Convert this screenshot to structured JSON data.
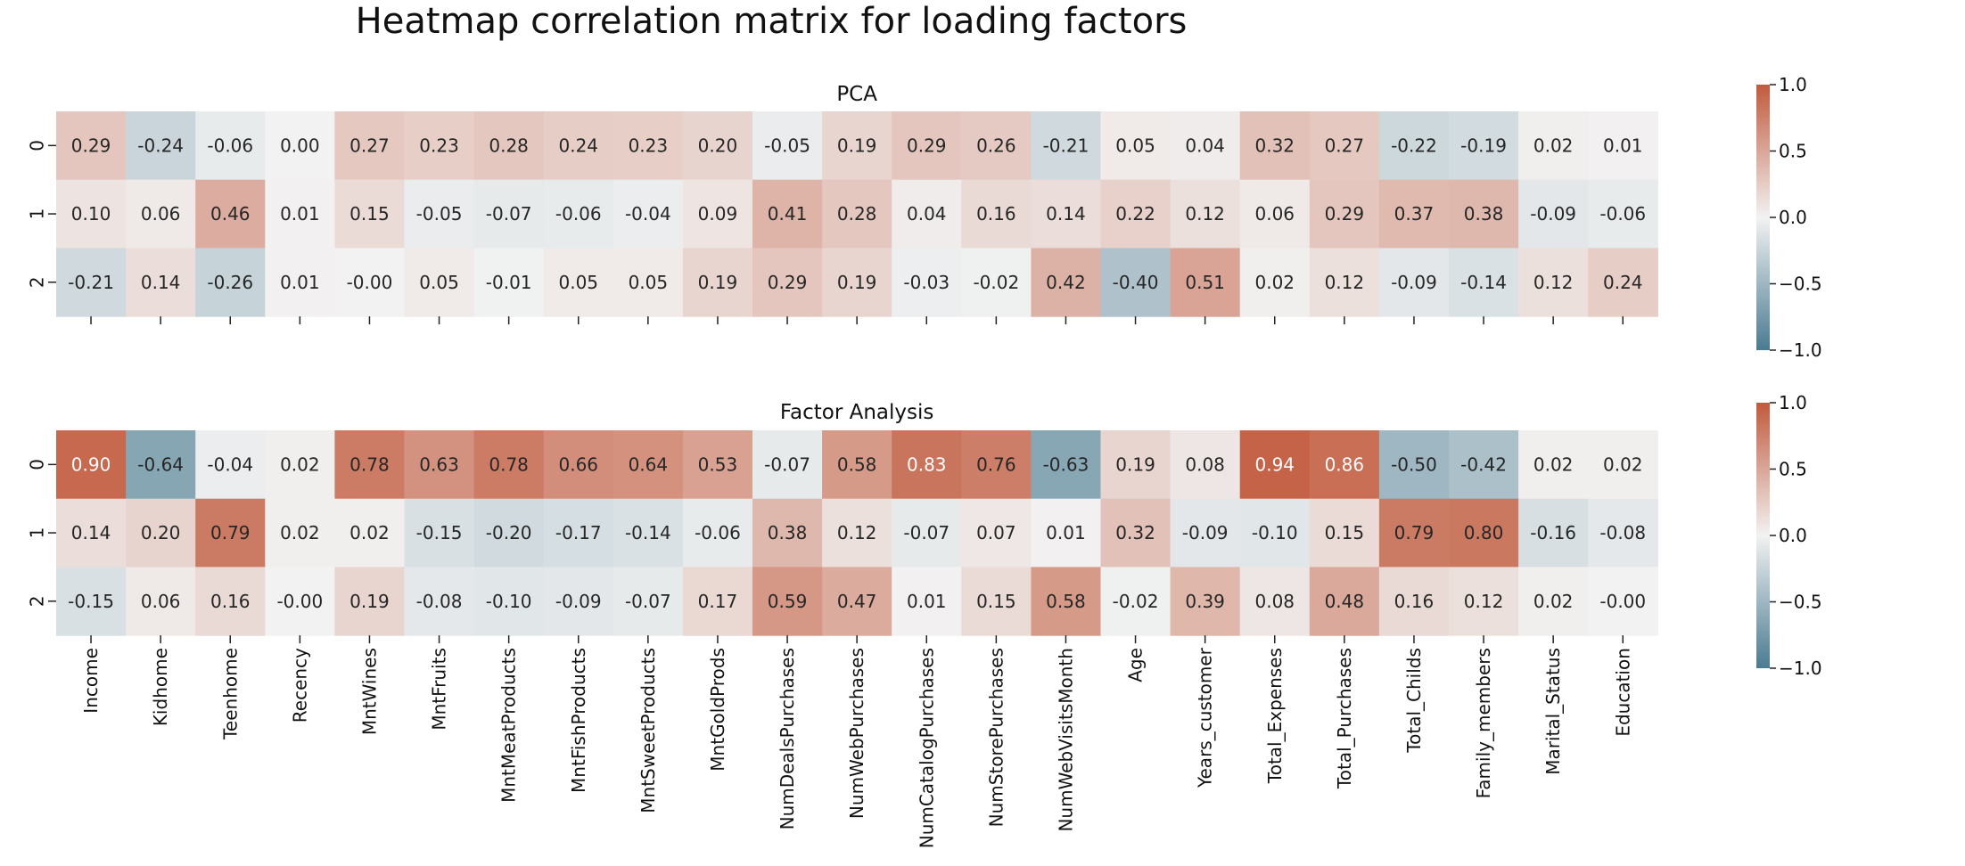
{
  "chart_data": {
    "type": "heatmap",
    "title": "Heatmap correlation matrix for loading factors",
    "colormap": {
      "low": "#4a7b91",
      "mid": "#f2f2f2",
      "high": "#c15a3d",
      "vmin": -1.0,
      "vmax": 1.0
    },
    "colorbar_ticks": [
      "1.0",
      "0.5",
      "0.0",
      "−0.5",
      "−1.0"
    ],
    "columns": [
      "Income",
      "Kidhome",
      "Teenhome",
      "Recency",
      "MntWines",
      "MntFruits",
      "MntMeatProducts",
      "MntFishProducts",
      "MntSweetProducts",
      "MntGoldProds",
      "NumDealsPurchases",
      "NumWebPurchases",
      "NumCatalogPurchases",
      "NumStorePurchases",
      "NumWebVisitsMonth",
      "Age",
      "Years_customer",
      "Total_Expenses",
      "Total_Purchases",
      "Total_Childs",
      "Family_members",
      "Marital_Status",
      "Education"
    ],
    "rows": [
      "0",
      "1",
      "2"
    ],
    "panels": [
      {
        "name": "PCA",
        "values": [
          [
            0.29,
            -0.24,
            -0.06,
            0.0,
            0.27,
            0.23,
            0.28,
            0.24,
            0.23,
            0.2,
            -0.05,
            0.19,
            0.29,
            0.26,
            -0.21,
            0.05,
            0.04,
            0.32,
            0.27,
            -0.22,
            -0.19,
            0.02,
            0.01
          ],
          [
            0.1,
            0.06,
            0.46,
            0.01,
            0.15,
            -0.05,
            -0.07,
            -0.06,
            -0.04,
            0.09,
            0.41,
            0.28,
            0.04,
            0.16,
            0.14,
            0.22,
            0.12,
            0.06,
            0.29,
            0.37,
            0.38,
            -0.09,
            -0.06
          ],
          [
            -0.21,
            0.14,
            -0.26,
            0.01,
            -0.0,
            0.05,
            -0.01,
            0.05,
            0.05,
            0.19,
            0.29,
            0.19,
            -0.03,
            -0.02,
            0.42,
            -0.4,
            0.51,
            0.02,
            0.12,
            -0.09,
            -0.14,
            0.12,
            0.24
          ]
        ]
      },
      {
        "name": "Factor Analysis",
        "values": [
          [
            0.9,
            -0.64,
            -0.04,
            0.02,
            0.78,
            0.63,
            0.78,
            0.66,
            0.64,
            0.53,
            -0.07,
            0.58,
            0.83,
            0.76,
            -0.63,
            0.19,
            0.08,
            0.94,
            0.86,
            -0.5,
            -0.42,
            0.02,
            0.02
          ],
          [
            0.14,
            0.2,
            0.79,
            0.02,
            0.02,
            -0.15,
            -0.2,
            -0.17,
            -0.14,
            -0.06,
            0.38,
            0.12,
            -0.07,
            0.07,
            0.01,
            0.32,
            -0.09,
            -0.1,
            0.15,
            0.79,
            0.8,
            -0.16,
            -0.08
          ],
          [
            -0.15,
            0.06,
            0.16,
            -0.0,
            0.19,
            -0.08,
            -0.1,
            -0.09,
            -0.07,
            0.17,
            0.59,
            0.47,
            0.01,
            0.15,
            0.58,
            -0.02,
            0.39,
            0.08,
            0.48,
            0.16,
            0.12,
            0.02,
            -0.0
          ]
        ]
      }
    ]
  }
}
